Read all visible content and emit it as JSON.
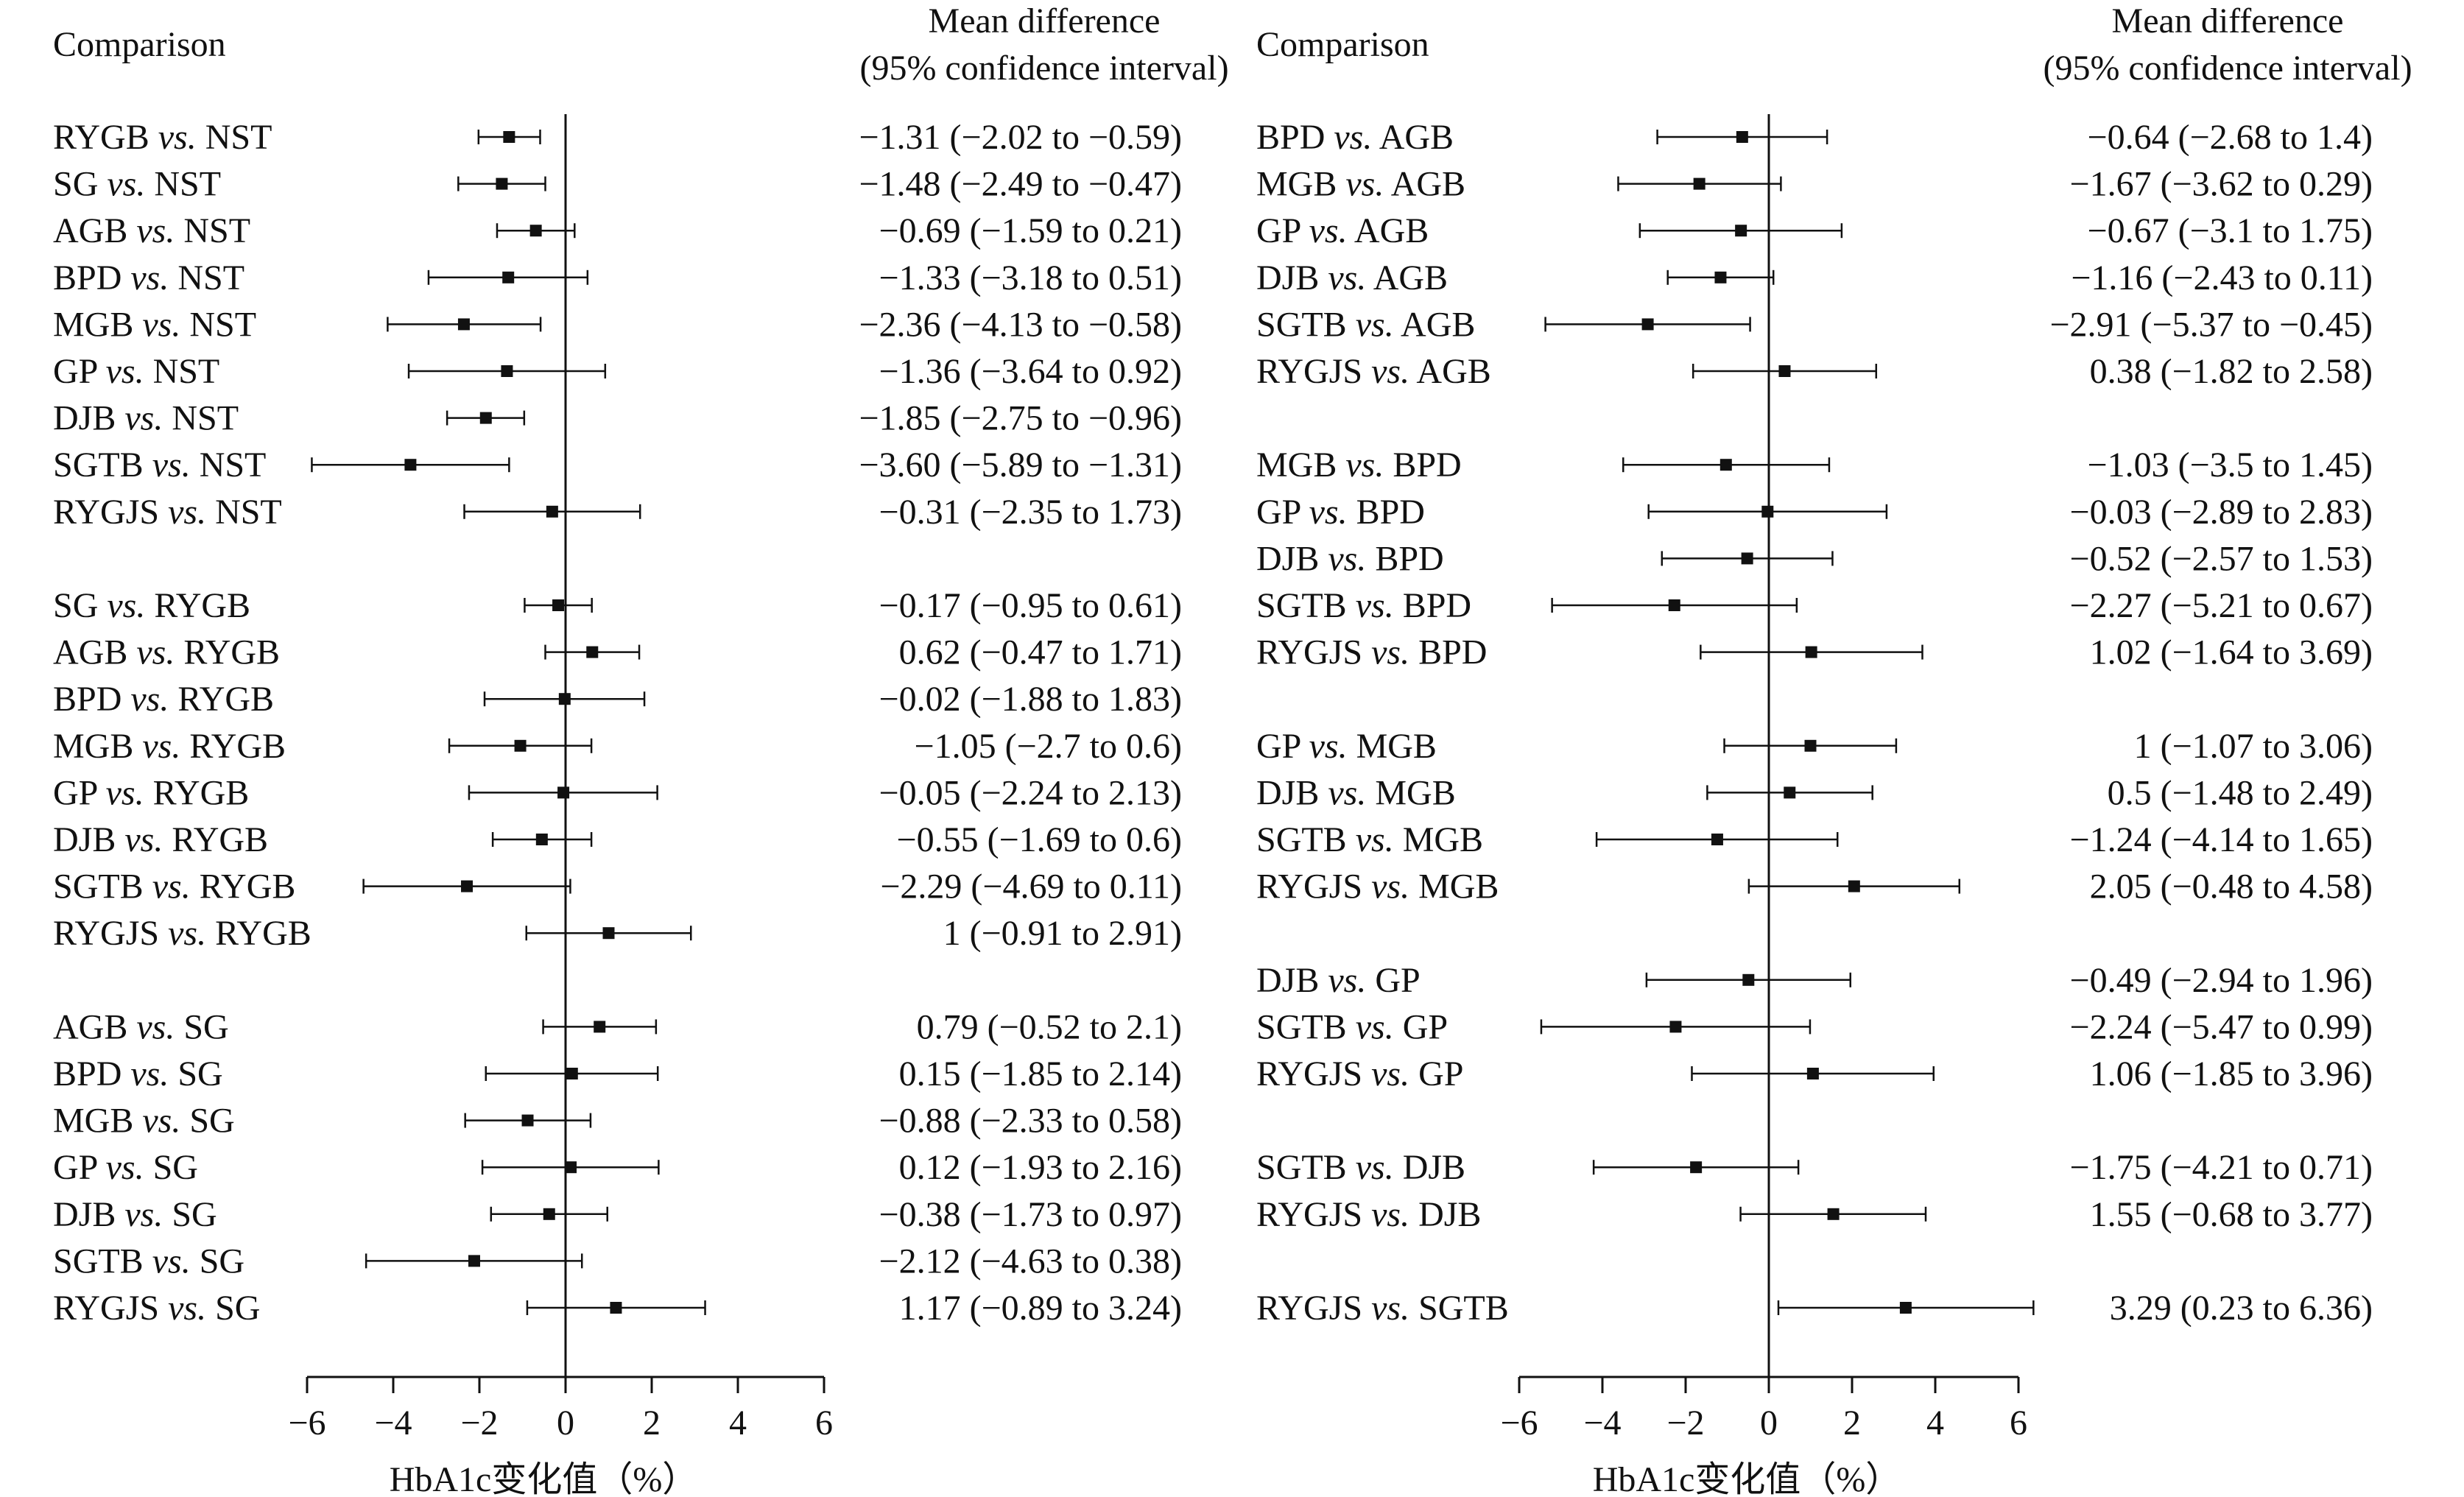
{
  "chart_data": [
    {
      "type": "forest",
      "header_comparison": "Comparison",
      "header_md_line1": "Mean difference",
      "header_md_line2": "(95% confidence interval)",
      "xlabel": "HbA1c变化值（%）",
      "xlim": [
        -6,
        6
      ],
      "xticks": [
        "−6",
        "−4",
        "−2",
        "0",
        "2",
        "4",
        "6"
      ],
      "xtick_values": [
        -6,
        -4,
        -2,
        0,
        2,
        4,
        6
      ],
      "rows": [
        {
          "a": "RYGB",
          "b": "NST",
          "md": -1.31,
          "lo": -2.02,
          "hi": -0.59,
          "text": "−1.31 (−2.02 to −0.59)",
          "slot": 0
        },
        {
          "a": "SG",
          "b": "NST",
          "md": -1.48,
          "lo": -2.49,
          "hi": -0.47,
          "text": "−1.48 (−2.49 to −0.47)",
          "slot": 1
        },
        {
          "a": "AGB",
          "b": "NST",
          "md": -0.69,
          "lo": -1.59,
          "hi": 0.21,
          "text": "−0.69 (−1.59 to 0.21)",
          "slot": 2
        },
        {
          "a": "BPD",
          "b": "NST",
          "md": -1.33,
          "lo": -3.18,
          "hi": 0.51,
          "text": "−1.33 (−3.18 to 0.51)",
          "slot": 3
        },
        {
          "a": "MGB",
          "b": "NST",
          "md": -2.36,
          "lo": -4.13,
          "hi": -0.58,
          "text": "−2.36 (−4.13 to −0.58)",
          "slot": 4
        },
        {
          "a": "GP",
          "b": "NST",
          "md": -1.36,
          "lo": -3.64,
          "hi": 0.92,
          "text": "−1.36 (−3.64 to 0.92)",
          "slot": 5
        },
        {
          "a": "DJB",
          "b": "NST",
          "md": -1.85,
          "lo": -2.75,
          "hi": -0.96,
          "text": "−1.85 (−2.75 to −0.96)",
          "slot": 6
        },
        {
          "a": "SGTB",
          "b": "NST",
          "md": -3.6,
          "lo": -5.89,
          "hi": -1.31,
          "text": "−3.60 (−5.89 to −1.31)",
          "slot": 7
        },
        {
          "a": "RYGJS",
          "b": "NST",
          "md": -0.31,
          "lo": -2.35,
          "hi": 1.73,
          "text": "−0.31 (−2.35 to 1.73)",
          "slot": 8
        },
        {
          "a": "SG",
          "b": "RYGB",
          "md": -0.17,
          "lo": -0.95,
          "hi": 0.61,
          "text": "−0.17 (−0.95 to 0.61)",
          "slot": 10
        },
        {
          "a": "AGB",
          "b": "RYGB",
          "md": 0.62,
          "lo": -0.47,
          "hi": 1.71,
          "text": "0.62 (−0.47 to 1.71)",
          "slot": 11
        },
        {
          "a": "BPD",
          "b": "RYGB",
          "md": -0.02,
          "lo": -1.88,
          "hi": 1.83,
          "text": "−0.02 (−1.88 to 1.83)",
          "slot": 12
        },
        {
          "a": "MGB",
          "b": "RYGB",
          "md": -1.05,
          "lo": -2.7,
          "hi": 0.6,
          "text": "−1.05 (−2.7 to 0.6)",
          "slot": 13
        },
        {
          "a": "GP",
          "b": "RYGB",
          "md": -0.05,
          "lo": -2.24,
          "hi": 2.13,
          "text": "−0.05 (−2.24 to 2.13)",
          "slot": 14
        },
        {
          "a": "DJB",
          "b": "RYGB",
          "md": -0.55,
          "lo": -1.69,
          "hi": 0.6,
          "text": "−0.55 (−1.69 to 0.6)",
          "slot": 15
        },
        {
          "a": "SGTB",
          "b": "RYGB",
          "md": -2.29,
          "lo": -4.69,
          "hi": 0.11,
          "text": "−2.29 (−4.69 to 0.11)",
          "slot": 16
        },
        {
          "a": "RYGJS",
          "b": "RYGB",
          "md": 1,
          "lo": -0.91,
          "hi": 2.91,
          "text": "1 (−0.91 to 2.91)",
          "slot": 17
        },
        {
          "a": "AGB",
          "b": "SG",
          "md": 0.79,
          "lo": -0.52,
          "hi": 2.1,
          "text": "0.79 (−0.52 to 2.1)",
          "slot": 19
        },
        {
          "a": "BPD",
          "b": "SG",
          "md": 0.15,
          "lo": -1.85,
          "hi": 2.14,
          "text": "0.15 (−1.85 to 2.14)",
          "slot": 20
        },
        {
          "a": "MGB",
          "b": "SG",
          "md": -0.88,
          "lo": -2.33,
          "hi": 0.58,
          "text": "−0.88 (−2.33 to 0.58)",
          "slot": 21
        },
        {
          "a": "GP",
          "b": "SG",
          "md": 0.12,
          "lo": -1.93,
          "hi": 2.16,
          "text": "0.12 (−1.93 to 2.16)",
          "slot": 22
        },
        {
          "a": "DJB",
          "b": "SG",
          "md": -0.38,
          "lo": -1.73,
          "hi": 0.97,
          "text": "−0.38 (−1.73 to 0.97)",
          "slot": 23
        },
        {
          "a": "SGTB",
          "b": "SG",
          "md": -2.12,
          "lo": -4.63,
          "hi": 0.38,
          "text": "−2.12 (−4.63 to 0.38)",
          "slot": 24
        },
        {
          "a": "RYGJS",
          "b": "SG",
          "md": 1.17,
          "lo": -0.89,
          "hi": 3.24,
          "text": "1.17 (−0.89 to 3.24)",
          "slot": 25
        }
      ]
    },
    {
      "type": "forest",
      "header_comparison": "Comparison",
      "header_md_line1": "Mean difference",
      "header_md_line2": "(95% confidence interval)",
      "xlabel": "HbA1c变化值（%）",
      "xlim": [
        -6,
        6
      ],
      "xticks": [
        "−6",
        "−4",
        "−2",
        "0",
        "2",
        "4",
        "6"
      ],
      "xtick_values": [
        -6,
        -4,
        -2,
        0,
        2,
        4,
        6
      ],
      "rows": [
        {
          "a": "BPD",
          "b": "AGB",
          "md": -0.64,
          "lo": -2.68,
          "hi": 1.4,
          "text": "−0.64 (−2.68 to 1.4)",
          "slot": 0
        },
        {
          "a": "MGB",
          "b": "AGB",
          "md": -1.67,
          "lo": -3.62,
          "hi": 0.29,
          "text": "−1.67 (−3.62 to 0.29)",
          "slot": 1
        },
        {
          "a": "GP",
          "b": "AGB",
          "md": -0.67,
          "lo": -3.1,
          "hi": 1.75,
          "text": "−0.67 (−3.1 to 1.75)",
          "slot": 2
        },
        {
          "a": "DJB",
          "b": "AGB",
          "md": -1.16,
          "lo": -2.43,
          "hi": 0.11,
          "text": "−1.16 (−2.43 to 0.11)",
          "slot": 3
        },
        {
          "a": "SGTB",
          "b": "AGB",
          "md": -2.91,
          "lo": -5.37,
          "hi": -0.45,
          "text": "−2.91 (−5.37 to −0.45)",
          "slot": 4
        },
        {
          "a": "RYGJS",
          "b": "AGB",
          "md": 0.38,
          "lo": -1.82,
          "hi": 2.58,
          "text": "0.38 (−1.82 to 2.58)",
          "slot": 5
        },
        {
          "a": "MGB",
          "b": "BPD",
          "md": -1.03,
          "lo": -3.5,
          "hi": 1.45,
          "text": "−1.03 (−3.5 to 1.45)",
          "slot": 7
        },
        {
          "a": "GP",
          "b": "BPD",
          "md": -0.03,
          "lo": -2.89,
          "hi": 2.83,
          "text": "−0.03 (−2.89 to 2.83)",
          "slot": 8
        },
        {
          "a": "DJB",
          "b": "BPD",
          "md": -0.52,
          "lo": -2.57,
          "hi": 1.53,
          "text": "−0.52 (−2.57 to 1.53)",
          "slot": 9
        },
        {
          "a": "SGTB",
          "b": "BPD",
          "md": -2.27,
          "lo": -5.21,
          "hi": 0.67,
          "text": "−2.27 (−5.21 to 0.67)",
          "slot": 10
        },
        {
          "a": "RYGJS",
          "b": "BPD",
          "md": 1.02,
          "lo": -1.64,
          "hi": 3.69,
          "text": "1.02 (−1.64 to 3.69)",
          "slot": 11
        },
        {
          "a": "GP",
          "b": "MGB",
          "md": 1,
          "lo": -1.07,
          "hi": 3.06,
          "text": "1 (−1.07 to 3.06)",
          "slot": 13
        },
        {
          "a": "DJB",
          "b": "MGB",
          "md": 0.5,
          "lo": -1.48,
          "hi": 2.49,
          "text": "0.5 (−1.48 to 2.49)",
          "slot": 14
        },
        {
          "a": "SGTB",
          "b": "MGB",
          "md": -1.24,
          "lo": -4.14,
          "hi": 1.65,
          "text": "−1.24 (−4.14 to 1.65)",
          "slot": 15
        },
        {
          "a": "RYGJS",
          "b": "MGB",
          "md": 2.05,
          "lo": -0.48,
          "hi": 4.58,
          "text": "2.05 (−0.48 to 4.58)",
          "slot": 16
        },
        {
          "a": "DJB",
          "b": "GP",
          "md": -0.49,
          "lo": -2.94,
          "hi": 1.96,
          "text": "−0.49 (−2.94 to 1.96)",
          "slot": 18
        },
        {
          "a": "SGTB",
          "b": "GP",
          "md": -2.24,
          "lo": -5.47,
          "hi": 0.99,
          "text": "−2.24 (−5.47 to 0.99)",
          "slot": 19
        },
        {
          "a": "RYGJS",
          "b": "GP",
          "md": 1.06,
          "lo": -1.85,
          "hi": 3.96,
          "text": "1.06 (−1.85 to 3.96)",
          "slot": 20
        },
        {
          "a": "SGTB",
          "b": "DJB",
          "md": -1.75,
          "lo": -4.21,
          "hi": 0.71,
          "text": "−1.75 (−4.21 to 0.71)",
          "slot": 22
        },
        {
          "a": "RYGJS",
          "b": "DJB",
          "md": 1.55,
          "lo": -0.68,
          "hi": 3.77,
          "text": "1.55 (−0.68 to 3.77)",
          "slot": 23
        },
        {
          "a": "RYGJS",
          "b": "SGTB",
          "md": 3.29,
          "lo": 0.23,
          "hi": 6.36,
          "text": "3.29 (0.23 to 6.36)",
          "slot": 25
        }
      ]
    }
  ]
}
